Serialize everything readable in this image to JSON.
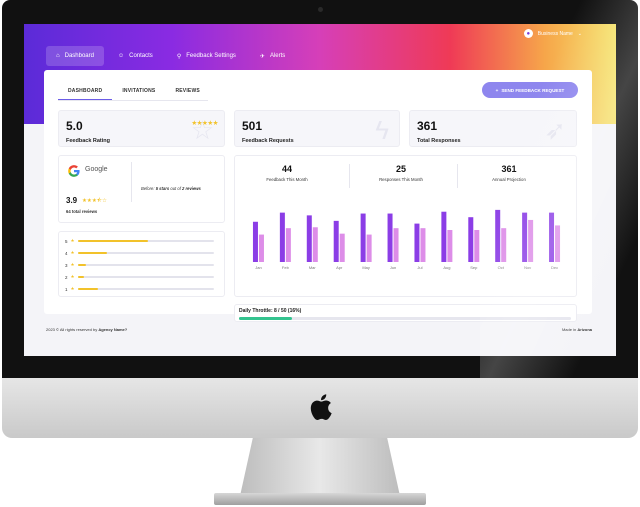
{
  "header": {
    "nav": [
      {
        "label": "Dashboard",
        "icon": "home-icon",
        "glyph": "⌂",
        "active": true
      },
      {
        "label": "Contacts",
        "icon": "user-icon",
        "glyph": "☺",
        "active": false
      },
      {
        "label": "Feedback Settings",
        "icon": "pin-icon",
        "glyph": "⚲",
        "active": false
      },
      {
        "label": "Alerts",
        "icon": "megaphone-icon",
        "glyph": "✈",
        "active": false
      }
    ],
    "user_name": "Business Name",
    "user_caret": "⌄"
  },
  "tabs": [
    {
      "label": "DASHBOARD",
      "active": true
    },
    {
      "label": "INVITATIONS",
      "active": false
    },
    {
      "label": "REVIEWS",
      "active": false
    }
  ],
  "send_button": "SEND FEEDBACK REQUEST",
  "stats": [
    {
      "value": "5.0",
      "label": "Feedback Rating"
    },
    {
      "value": "501",
      "label": "Feedback Requests"
    },
    {
      "value": "361",
      "label": "Total Responses"
    }
  ],
  "google": {
    "name": "Google",
    "rating": "3.9",
    "rating_stars": 3.5,
    "note_prefix": "Before:",
    "note_bold1": "5 stars",
    "note_mid": "out of",
    "note_bold2": "2 reviews",
    "total": "64 total reviews"
  },
  "breakdown": [
    {
      "stars": "5",
      "fraction": 0.52
    },
    {
      "stars": "4",
      "fraction": 0.22
    },
    {
      "stars": "3",
      "fraction": 0.06
    },
    {
      "stars": "2",
      "fraction": 0.05
    },
    {
      "stars": "1",
      "fraction": 0.15
    }
  ],
  "metrics": [
    {
      "value": "44",
      "label": "Feedback This Month"
    },
    {
      "value": "25",
      "label": "Responses This Month"
    },
    {
      "value": "361",
      "label": "Annual Projection"
    }
  ],
  "chart_data": {
    "type": "bar",
    "categories": [
      "Jan",
      "Feb",
      "Mar",
      "Apr",
      "May",
      "Jun",
      "Jul",
      "Aug",
      "Sep",
      "Oct",
      "Nov",
      "Dec"
    ],
    "series": [
      {
        "values": [
          44,
          54,
          51,
          45,
          53,
          53,
          42,
          55,
          49,
          57,
          54,
          54
        ],
        "color": "#8b3de6"
      },
      {
        "values": [
          30,
          37,
          38,
          31,
          30,
          37,
          37,
          35,
          35,
          37,
          46,
          40
        ],
        "color": "#dd8de8"
      }
    ],
    "ylim": [
      0,
      70
    ],
    "grid": false
  },
  "throttle": {
    "label": "Daily Throttle: 8 / 50 (16%)",
    "fraction": 0.16
  },
  "footer": {
    "left_prefix": "2023 © All rights reserved by",
    "left_bold": "Agency Name?",
    "right_prefix": "Made in",
    "right_bold": "Arizona"
  }
}
